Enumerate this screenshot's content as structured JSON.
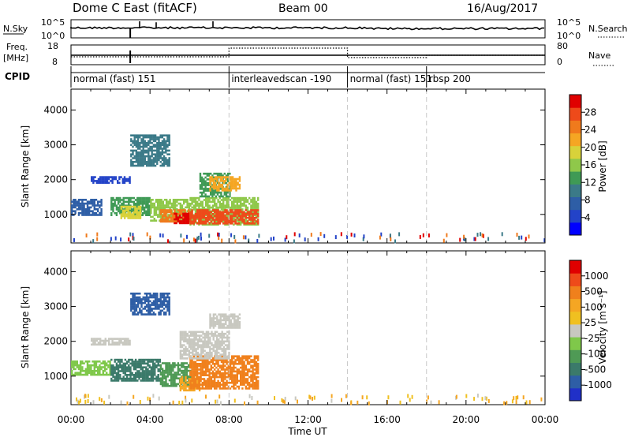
{
  "header": {
    "title": "Dome C East (fitACF)",
    "beam": "Beam 00",
    "date": "16/Aug/2017"
  },
  "top_panels": {
    "nsky_label": "N.Sky",
    "nsky_ticks": [
      "10^5",
      "10^0"
    ],
    "nsearch_label": "N.Search",
    "nsearch_ticks": [
      "10^5",
      "10^0"
    ],
    "freq_label_1": "Freq.",
    "freq_label_2": "[MHz]",
    "freq_ticks": [
      "18",
      "8"
    ],
    "nave_label": "Nave",
    "nave_ticks": [
      "80",
      "0"
    ],
    "cpid_label": "CPID"
  },
  "cpid_segments": [
    {
      "label": "normal (fast) 151",
      "start_hour": 0
    },
    {
      "label": "interleavedscan -190",
      "start_hour": 8
    },
    {
      "label": "normal (fast) 151",
      "start_hour": 14
    },
    {
      "label": "rbsp 200",
      "start_hour": 18
    }
  ],
  "x_axis": {
    "ticks": [
      "00:00",
      "04:00",
      "08:00",
      "12:00",
      "16:00",
      "20:00",
      "00:00"
    ],
    "label": "Time UT"
  },
  "power_panel": {
    "ylabel": "Slant Range [km]",
    "yticks": [
      "4000",
      "3000",
      "2000",
      "1000"
    ],
    "colorbar_label": "Power [dB]",
    "colorbar_ticks": [
      "28",
      "24",
      "20",
      "16",
      "12",
      "8",
      "4"
    ],
    "colorbar_colors": [
      "#0000ff",
      "#2343c8",
      "#2e5ea6",
      "#3b7a88",
      "#3f9a55",
      "#8fc84a",
      "#d8d23a",
      "#f5a623",
      "#f07a1c",
      "#ee4a1a",
      "#e00000"
    ]
  },
  "velocity_panel": {
    "ylabel": "Slant Range [km]",
    "yticks": [
      "4000",
      "3000",
      "2000",
      "1000"
    ],
    "colorbar_label": "Velocity [m s⁻¹]",
    "colorbar_ticks": [
      "1000",
      "500",
      "100",
      "25",
      "-25",
      "-100",
      "-500",
      "-1000"
    ],
    "colorbar_colors": [
      "#2030c8",
      "#2e5ea6",
      "#3b7a6a",
      "#4f9a55",
      "#7fc84a",
      "#c8c8c0",
      "#f0c020",
      "#f5a623",
      "#f0801c",
      "#ee4a1a",
      "#e00000"
    ]
  },
  "chart_data": {
    "type": "heatmap",
    "x_range_hours": [
      0,
      24
    ],
    "y_range_km": [
      180,
      4600
    ],
    "mode_change_hours": [
      8,
      14,
      18
    ],
    "power_regions": [
      {
        "t0": 0.0,
        "t1": 1.5,
        "r0": 1000,
        "r1": 1450,
        "color": "#2e5ea6"
      },
      {
        "t0": 2.0,
        "t1": 4.0,
        "r0": 1000,
        "r1": 1500,
        "color": "#3f9a55"
      },
      {
        "t0": 2.5,
        "t1": 3.5,
        "r0": 900,
        "r1": 1250,
        "color": "#d8d23a"
      },
      {
        "t0": 4.0,
        "t1": 6.0,
        "r0": 850,
        "r1": 1450,
        "color": "#8fc84a"
      },
      {
        "t0": 4.5,
        "t1": 6.0,
        "r0": 800,
        "r1": 1150,
        "color": "#f07a1c"
      },
      {
        "t0": 5.2,
        "t1": 6.0,
        "r0": 750,
        "r1": 1050,
        "color": "#e00000"
      },
      {
        "t0": 6.0,
        "t1": 9.5,
        "r0": 700,
        "r1": 1500,
        "color": "#8fc84a"
      },
      {
        "t0": 6.0,
        "t1": 9.5,
        "r0": 750,
        "r1": 1150,
        "color": "#ee4a1a"
      },
      {
        "t0": 6.5,
        "t1": 8.0,
        "r0": 1500,
        "r1": 2200,
        "color": "#3f9a55"
      },
      {
        "t0": 7.0,
        "t1": 8.5,
        "r0": 1700,
        "r1": 2100,
        "color": "#f5a623"
      },
      {
        "t0": 1.0,
        "t1": 3.0,
        "r0": 1900,
        "r1": 2100,
        "color": "#2343c8"
      },
      {
        "t0": 3.0,
        "t1": 5.0,
        "r0": 2400,
        "r1": 3300,
        "color": "#3b7a88"
      }
    ],
    "velocity_regions": [
      {
        "t0": 0.0,
        "t1": 2.0,
        "r0": 1050,
        "r1": 1450,
        "color": "#7fc84a"
      },
      {
        "t0": 2.0,
        "t1": 4.5,
        "r0": 900,
        "r1": 1500,
        "color": "#3b7a6a"
      },
      {
        "t0": 4.5,
        "t1": 6.0,
        "r0": 700,
        "r1": 1400,
        "color": "#4f9a55"
      },
      {
        "t0": 5.5,
        "t1": 6.5,
        "r0": 600,
        "r1": 1000,
        "color": "#f5a623"
      },
      {
        "t0": 6.0,
        "t1": 9.5,
        "r0": 650,
        "r1": 1600,
        "color": "#f0801c"
      },
      {
        "t0": 5.5,
        "t1": 8.0,
        "r0": 1500,
        "r1": 2300,
        "color": "#c8c8c0"
      },
      {
        "t0": 7.0,
        "t1": 8.5,
        "r0": 2400,
        "r1": 2800,
        "color": "#c8c8c0"
      },
      {
        "t0": 1.0,
        "t1": 3.0,
        "r0": 1900,
        "r1": 2100,
        "color": "#c8c8c0"
      },
      {
        "t0": 3.0,
        "t1": 5.0,
        "r0": 2800,
        "r1": 3400,
        "color": "#2e5ea6"
      }
    ]
  }
}
